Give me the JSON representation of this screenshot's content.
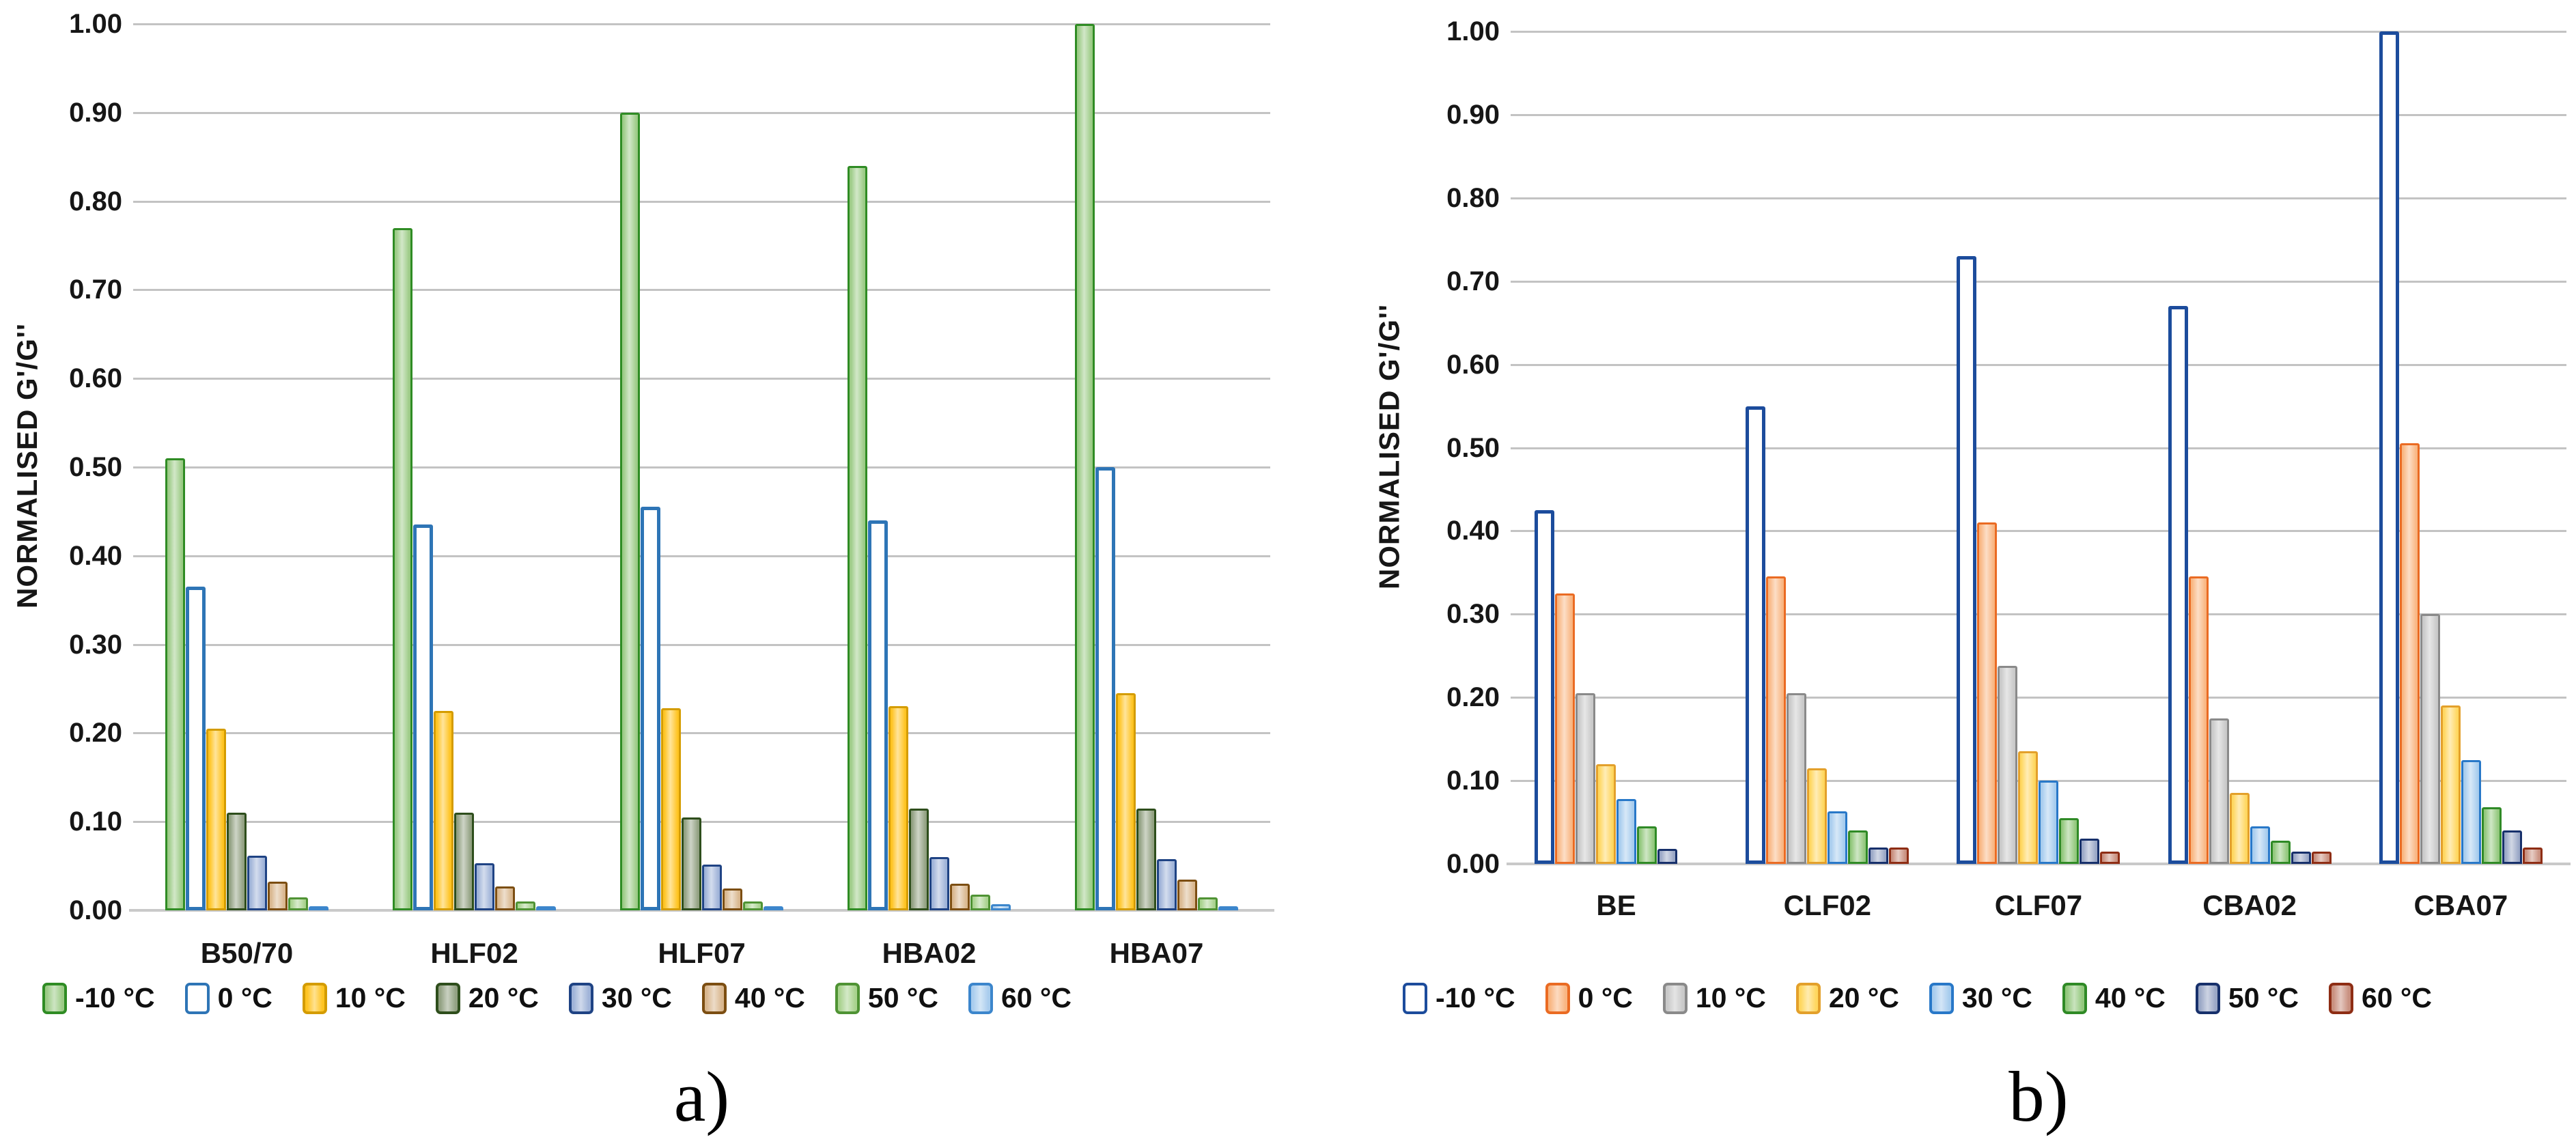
{
  "figure_background": "#FFFFFF",
  "chart_data": [
    {
      "type": "bar",
      "panel_label": "a)",
      "title": "",
      "xlabel": "",
      "ylabel": "NORMALISED G'/G''",
      "categories": [
        "B50/70",
        "HLF02",
        "HLF07",
        "HBA02",
        "HBA07"
      ],
      "ylim": [
        0,
        1.0
      ],
      "ytick_step": 0.1,
      "ytick_decimals": 2,
      "grid": true,
      "legend_position": "bottom",
      "series": [
        {
          "name": "-10 °C",
          "fill": "#9CCB86",
          "border": "#2F8C24",
          "values": [
            0.51,
            0.77,
            0.9,
            0.84,
            1.0
          ]
        },
        {
          "name": "0 °C",
          "fill": "#FFFFFF",
          "border": "#2E75B6",
          "values": [
            0.365,
            0.435,
            0.455,
            0.44,
            0.5
          ]
        },
        {
          "name": "10 °C",
          "fill": "#FFC422",
          "border": "#D49C00",
          "values": [
            0.205,
            0.225,
            0.228,
            0.23,
            0.245
          ]
        },
        {
          "name": "20 °C",
          "fill": "#92A182",
          "border": "#2E4E1C",
          "values": [
            0.11,
            0.11,
            0.105,
            0.115,
            0.115
          ]
        },
        {
          "name": "30 °C",
          "fill": "#9FB3D8",
          "border": "#1F4384",
          "values": [
            0.062,
            0.053,
            0.052,
            0.06,
            0.058
          ]
        },
        {
          "name": "40 °C",
          "fill": "#D9B78F",
          "border": "#7C4E12",
          "values": [
            0.032,
            0.027,
            0.025,
            0.03,
            0.035
          ]
        },
        {
          "name": "50 °C",
          "fill": "#A9D38F",
          "border": "#4F9334",
          "values": [
            0.015,
            0.01,
            0.01,
            0.018,
            0.015
          ]
        },
        {
          "name": "60 °C",
          "fill": "#A9CDEE",
          "border": "#3C86CC",
          "values": [
            0.005,
            0.005,
            0.003,
            0.007,
            0.005
          ]
        }
      ]
    },
    {
      "type": "bar",
      "panel_label": "b)",
      "title": "",
      "xlabel": "",
      "ylabel": "NORMALISED G'/G''",
      "categories": [
        "BE",
        "CLF02",
        "CLF07",
        "CBA02",
        "CBA07"
      ],
      "ylim": [
        0,
        1.0
      ],
      "ytick_step": 0.1,
      "ytick_decimals": 2,
      "grid": true,
      "legend_position": "bottom",
      "series": [
        {
          "name": "-10 °C",
          "fill": "#FFFFFF",
          "border": "#1C4C9C",
          "values": [
            0.425,
            0.55,
            0.73,
            0.67,
            1.0
          ]
        },
        {
          "name": "0 °C",
          "fill": "#F9B682",
          "border": "#EA6B23",
          "values": [
            0.325,
            0.345,
            0.41,
            0.345,
            0.505
          ]
        },
        {
          "name": "10 °C",
          "fill": "#C9C9C9",
          "border": "#8A8A8A",
          "values": [
            0.205,
            0.205,
            0.238,
            0.175,
            0.3
          ]
        },
        {
          "name": "20 °C",
          "fill": "#FFD75F",
          "border": "#E3A02B",
          "values": [
            0.12,
            0.115,
            0.135,
            0.085,
            0.19
          ]
        },
        {
          "name": "30 °C",
          "fill": "#A7CCEE",
          "border": "#2878C8",
          "values": [
            0.078,
            0.063,
            0.1,
            0.045,
            0.125
          ]
        },
        {
          "name": "40 °C",
          "fill": "#93C87D",
          "border": "#2F8A26",
          "values": [
            0.045,
            0.04,
            0.055,
            0.028,
            0.068
          ]
        },
        {
          "name": "50 °C",
          "fill": "#9AA7C6",
          "border": "#17306B",
          "values": [
            0.018,
            0.02,
            0.03,
            0.015,
            0.04
          ]
        },
        {
          "name": "60 °C",
          "fill": "#C9907F",
          "border": "#8E2D14",
          "values": [
            0.0,
            0.02,
            0.015,
            0.015,
            0.02
          ]
        }
      ]
    }
  ]
}
